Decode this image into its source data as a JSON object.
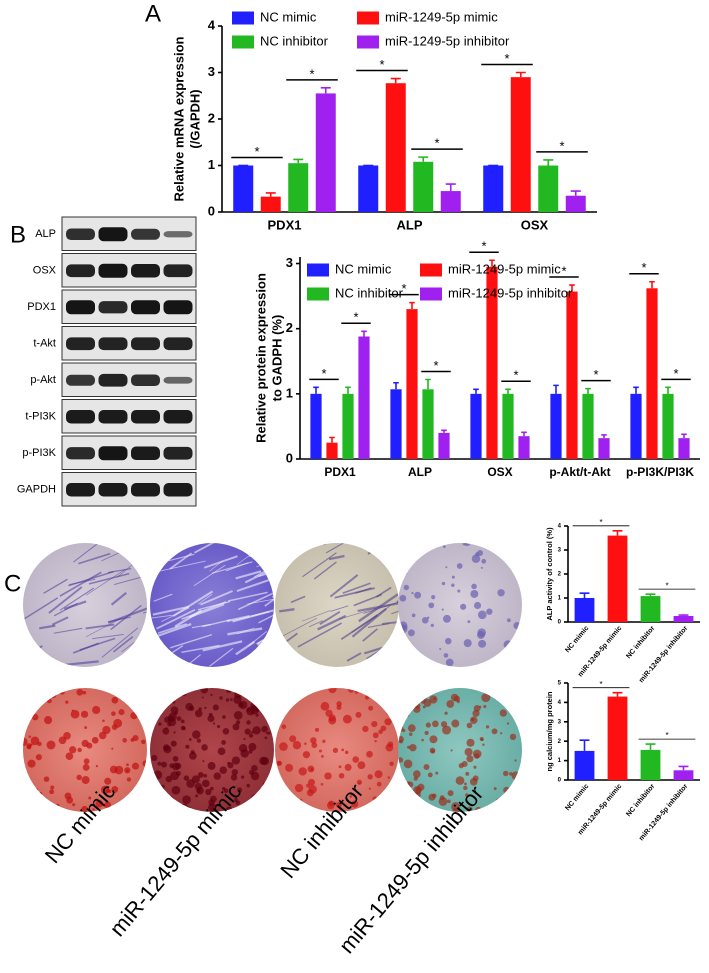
{
  "panel_labels": [
    "A",
    "B",
    "C"
  ],
  "blot": {
    "labels": [
      "ALP",
      "OSX",
      "PDX1",
      "t-Akt",
      "p-Akt",
      "t-PI3K",
      "p-PI3K",
      "GAPDH"
    ]
  },
  "images": {
    "captions": [
      "NC mimic",
      "miR-1249-5p mimic",
      "NC inhibitor",
      "miR-1249-5p inhibitor"
    ]
  },
  "chart_data": [
    {
      "type": "bar",
      "y_label": [
        "Relative mRNA expression",
        "(/GAPDH)"
      ],
      "categories": [
        "PDX1",
        "ALP",
        "OSX"
      ],
      "series": [
        {
          "name": "NC mimic",
          "color": "#1f1fff",
          "values": [
            1.0,
            1.0,
            1.0
          ],
          "errors": [
            0.0,
            0.0,
            0.0
          ]
        },
        {
          "name": "miR-1249-5p mimic",
          "color": "#ff1010",
          "values": [
            0.33,
            2.77,
            2.9
          ],
          "errors": [
            0.08,
            0.1,
            0.1
          ]
        },
        {
          "name": "NC inhibitor",
          "color": "#22b822",
          "values": [
            1.05,
            1.08,
            1.0
          ],
          "errors": [
            0.08,
            0.1,
            0.12
          ]
        },
        {
          "name": "miR-1249-5p inhibitor",
          "color": "#a020f0",
          "values": [
            2.55,
            0.45,
            0.35
          ],
          "errors": [
            0.12,
            0.15,
            0.1
          ]
        }
      ],
      "significance": [
        "*",
        "*",
        "*",
        "*",
        "*",
        "*"
      ],
      "ylim": [
        0,
        4
      ],
      "yticks": [
        0,
        1,
        2,
        3,
        4
      ]
    },
    {
      "type": "bar",
      "y_label": [
        "Relative protein expression",
        "to GADPH (%)"
      ],
      "categories": [
        "PDX1",
        "ALP",
        "OSX",
        "p-Akt/t-Akt",
        "p-PI3K/PI3K"
      ],
      "series": [
        {
          "name": "NC mimic",
          "color": "#1f1fff",
          "values": [
            1.0,
            1.07,
            1.0,
            1.0,
            1.0
          ],
          "errors": [
            0.1,
            0.1,
            0.07,
            0.13,
            0.1
          ]
        },
        {
          "name": "miR-1249-5p mimic",
          "color": "#ff1010",
          "values": [
            0.25,
            2.3,
            2.95,
            2.57,
            2.62
          ],
          "errors": [
            0.08,
            0.1,
            0.1,
            0.1,
            0.1
          ]
        },
        {
          "name": "NC inhibitor",
          "color": "#22b822",
          "values": [
            1.0,
            1.07,
            1.0,
            1.0,
            1.0
          ],
          "errors": [
            0.1,
            0.15,
            0.07,
            0.08,
            0.1
          ]
        },
        {
          "name": "miR-1249-5p inhibitor",
          "color": "#a020f0",
          "values": [
            1.88,
            0.4,
            0.35,
            0.32,
            0.32
          ],
          "errors": [
            0.08,
            0.04,
            0.06,
            0.05,
            0.06
          ]
        }
      ],
      "significance": [
        "*",
        "*",
        "*",
        "*",
        "*",
        "*",
        "*",
        "*",
        "*",
        "*"
      ],
      "ylim": [
        0,
        3.1
      ],
      "yticks": [
        0,
        1,
        2,
        3
      ]
    },
    {
      "type": "bar",
      "y_label": [
        "ALP activity of control (%)"
      ],
      "categories": [
        "NC mimic",
        "miR-1249-5p mimic",
        "NC inhibitor",
        "miR-1249-5p inhibitor"
      ],
      "values": [
        1.0,
        3.6,
        1.08,
        0.25
      ],
      "errors": [
        0.2,
        0.2,
        0.08,
        0.04
      ],
      "colors": [
        "#1f1fff",
        "#ff1010",
        "#22b822",
        "#a020f0"
      ],
      "significance": [
        "*",
        "*"
      ],
      "ylim": [
        0,
        4
      ],
      "yticks": [
        0,
        1,
        2,
        3,
        4
      ]
    },
    {
      "type": "bar",
      "y_label": [
        "ng calcium/mg protein"
      ],
      "categories": [
        "NC mimic",
        "miR-1249-5p mimic",
        "NC inhibitor",
        "miR-1249-5p inhibitor"
      ],
      "values": [
        1.5,
        4.3,
        1.55,
        0.5
      ],
      "errors": [
        0.55,
        0.2,
        0.3,
        0.2
      ],
      "colors": [
        "#1f1fff",
        "#ff1010",
        "#22b822",
        "#a020f0"
      ],
      "significance": [
        "*",
        "*"
      ],
      "ylim": [
        0,
        5
      ],
      "yticks": [
        0,
        1,
        2,
        3,
        4,
        5
      ]
    }
  ]
}
